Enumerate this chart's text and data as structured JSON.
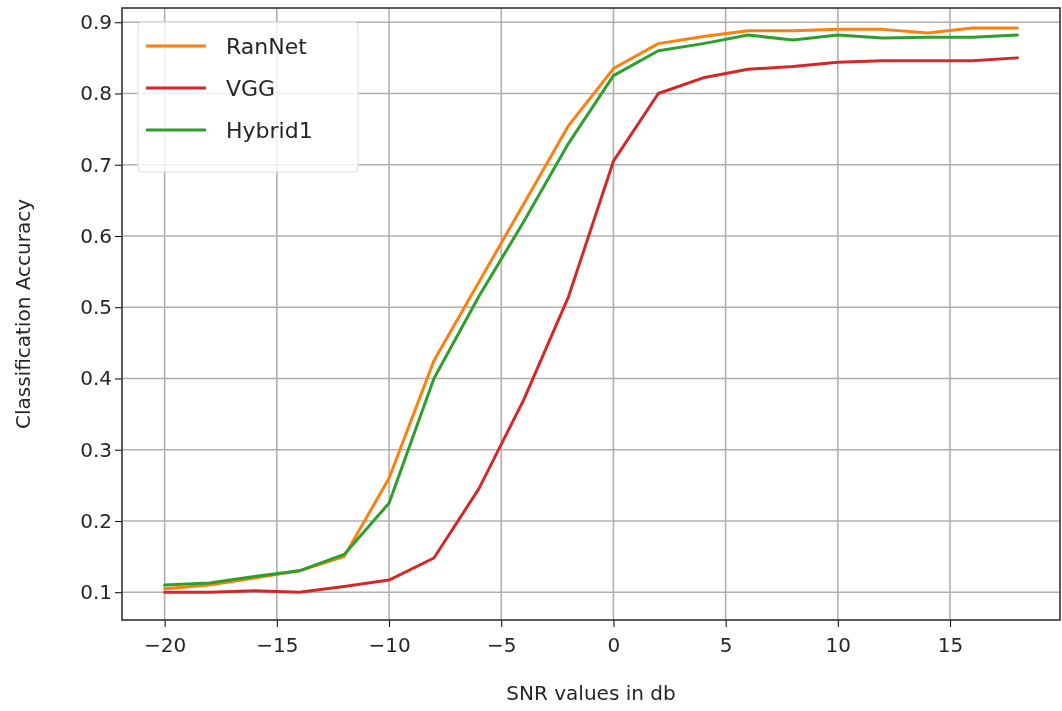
{
  "chart_data": {
    "type": "line",
    "xlabel": "SNR values in db",
    "ylabel": "Classification Accuracy",
    "x": [
      -20,
      -18,
      -16,
      -14,
      -12,
      -10,
      -8,
      -6,
      -4,
      -2,
      0,
      2,
      4,
      6,
      8,
      10,
      12,
      14,
      16,
      18
    ],
    "series": [
      {
        "name": "RanNet",
        "color": "#ff7f0e",
        "values": [
          0.105,
          0.11,
          0.12,
          0.13,
          0.15,
          0.26,
          0.425,
          0.535,
          0.645,
          0.755,
          0.835,
          0.87,
          0.88,
          0.888,
          0.888,
          0.89,
          0.89,
          0.885,
          0.892,
          0.892
        ]
      },
      {
        "name": "VGG",
        "color": "#d62728",
        "values": [
          0.1,
          0.1,
          0.102,
          0.1,
          0.108,
          0.117,
          0.148,
          0.245,
          0.37,
          0.515,
          0.705,
          0.8,
          0.822,
          0.834,
          0.838,
          0.844,
          0.846,
          0.846,
          0.846,
          0.85
        ]
      },
      {
        "name": "Hybrid1",
        "color": "#2ca02c",
        "values": [
          0.11,
          0.113,
          0.122,
          0.13,
          0.153,
          0.225,
          0.4,
          0.515,
          0.62,
          0.73,
          0.825,
          0.86,
          0.87,
          0.882,
          0.875,
          0.882,
          0.878,
          0.879,
          0.879,
          0.882
        ]
      }
    ],
    "xlim": [
      -21.9,
      19.9
    ],
    "ylim": [
      0.061,
      0.92
    ],
    "xticks": [
      {
        "value": -20,
        "label": "−20"
      },
      {
        "value": -15,
        "label": "−15"
      },
      {
        "value": -10,
        "label": "−10"
      },
      {
        "value": -5,
        "label": "−5"
      },
      0,
      5,
      10,
      15
    ],
    "yticks": [
      0.1,
      0.2,
      0.3,
      0.4,
      0.5,
      0.6,
      0.7,
      0.8,
      0.9
    ],
    "grid": true,
    "legend": "top left",
    "marker": "none",
    "line_style": "solid"
  }
}
